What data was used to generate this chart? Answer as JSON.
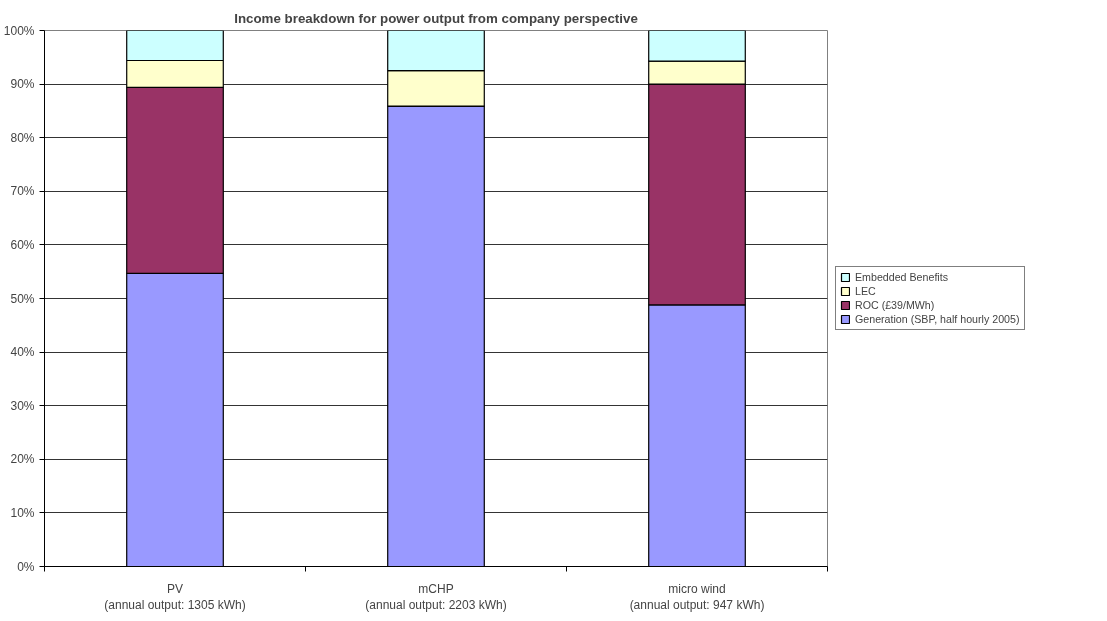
{
  "chart_data": {
    "type": "bar",
    "title": "Income breakdown for power output from company perspective",
    "categories": [
      "PV\n(annual output: 1305 kWh)",
      "mCHP\n(annual output: 2203 kWh)",
      "micro wind\n(annual output: 947 kWh)"
    ],
    "stacked": true,
    "series": [
      {
        "name": "Generation (SBP, half hourly 2005)",
        "color": "#9999ff",
        "values": [
          54.7,
          85.9,
          48.8
        ]
      },
      {
        "name": "ROC (£39/MWh)",
        "color": "#993366",
        "values": [
          34.7,
          0,
          41.2
        ]
      },
      {
        "name": "LEC",
        "color": "#ffffcc",
        "values": [
          5.0,
          6.6,
          4.3
        ]
      },
      {
        "name": "Embedded Benefits",
        "color": "#ccffff",
        "values": [
          5.6,
          7.5,
          5.7
        ]
      }
    ],
    "ylim": [
      0,
      100
    ],
    "yticks": [
      {
        "value": 0,
        "label": "0%"
      },
      {
        "value": 10,
        "label": "10%"
      },
      {
        "value": 20,
        "label": "20%"
      },
      {
        "value": 30,
        "label": "30%"
      },
      {
        "value": 40,
        "label": "40%"
      },
      {
        "value": 50,
        "label": "50%"
      },
      {
        "value": 60,
        "label": "60%"
      },
      {
        "value": 70,
        "label": "70%"
      },
      {
        "value": 80,
        "label": "80%"
      },
      {
        "value": 90,
        "label": "90%"
      },
      {
        "value": 100,
        "label": "100%"
      }
    ],
    "grid": "y",
    "legend": "right"
  }
}
